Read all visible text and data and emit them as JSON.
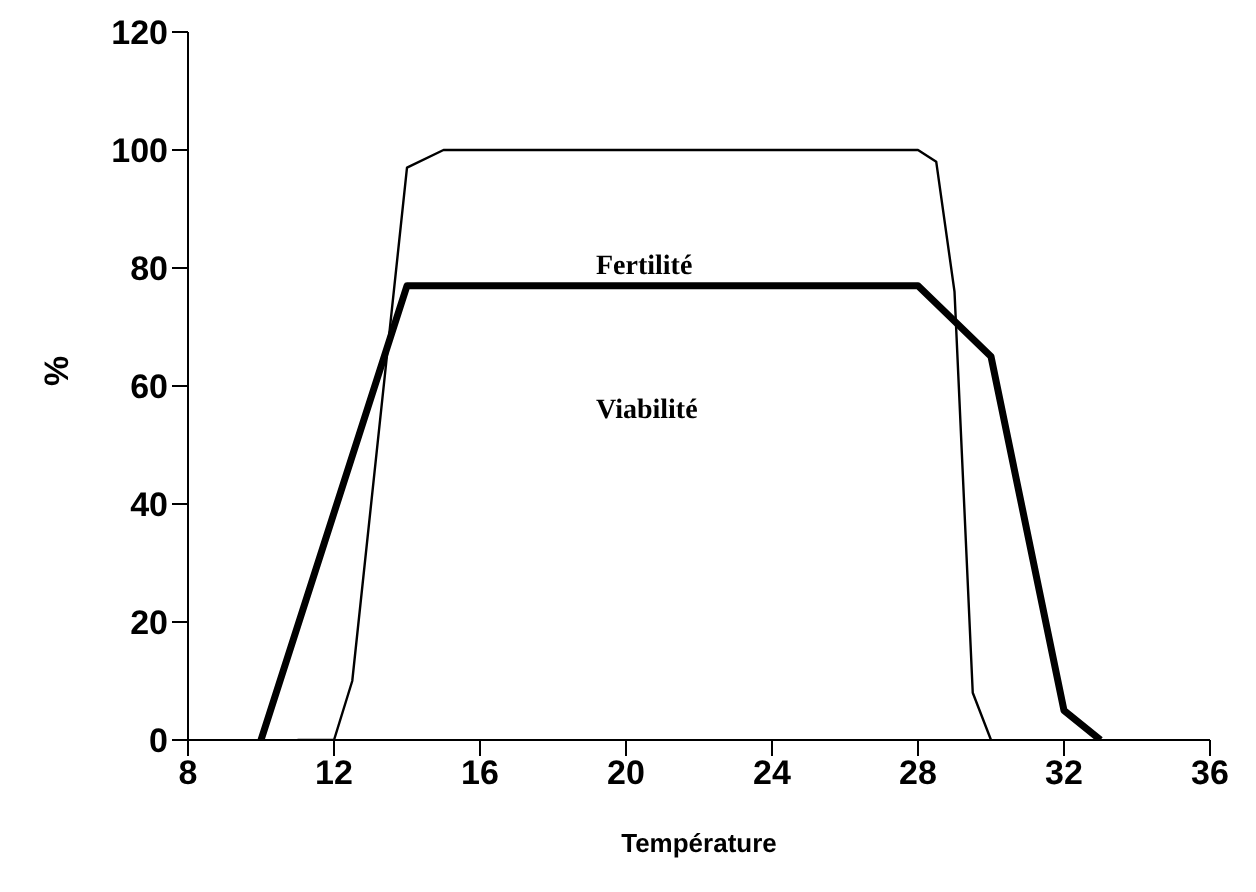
{
  "chart_data": {
    "type": "line",
    "xlabel": "Température",
    "ylabel": "%",
    "xlim": [
      8,
      36
    ],
    "xticks": [
      8,
      12,
      16,
      20,
      24,
      28,
      32,
      36
    ],
    "ylim": [
      0,
      120
    ],
    "yticks": [
      0,
      20,
      40,
      60,
      80,
      100,
      120
    ],
    "grid": false,
    "marker": "none",
    "line_style": "solid",
    "series": [
      {
        "color": "#000000",
        "x": [
          11,
          12,
          12.5,
          14,
          15,
          28,
          28.5,
          29,
          29.5,
          30
        ],
        "values": [
          0,
          0,
          10,
          97,
          100,
          100,
          98,
          76,
          8,
          0
        ]
      },
      {
        "color": "#000000",
        "x": [
          10,
          14,
          28,
          30,
          32,
          33
        ],
        "values": [
          0,
          77,
          77,
          65,
          5,
          0
        ]
      }
    ],
    "annotations": [
      "Fertilité",
      "Viabilité"
    ]
  }
}
